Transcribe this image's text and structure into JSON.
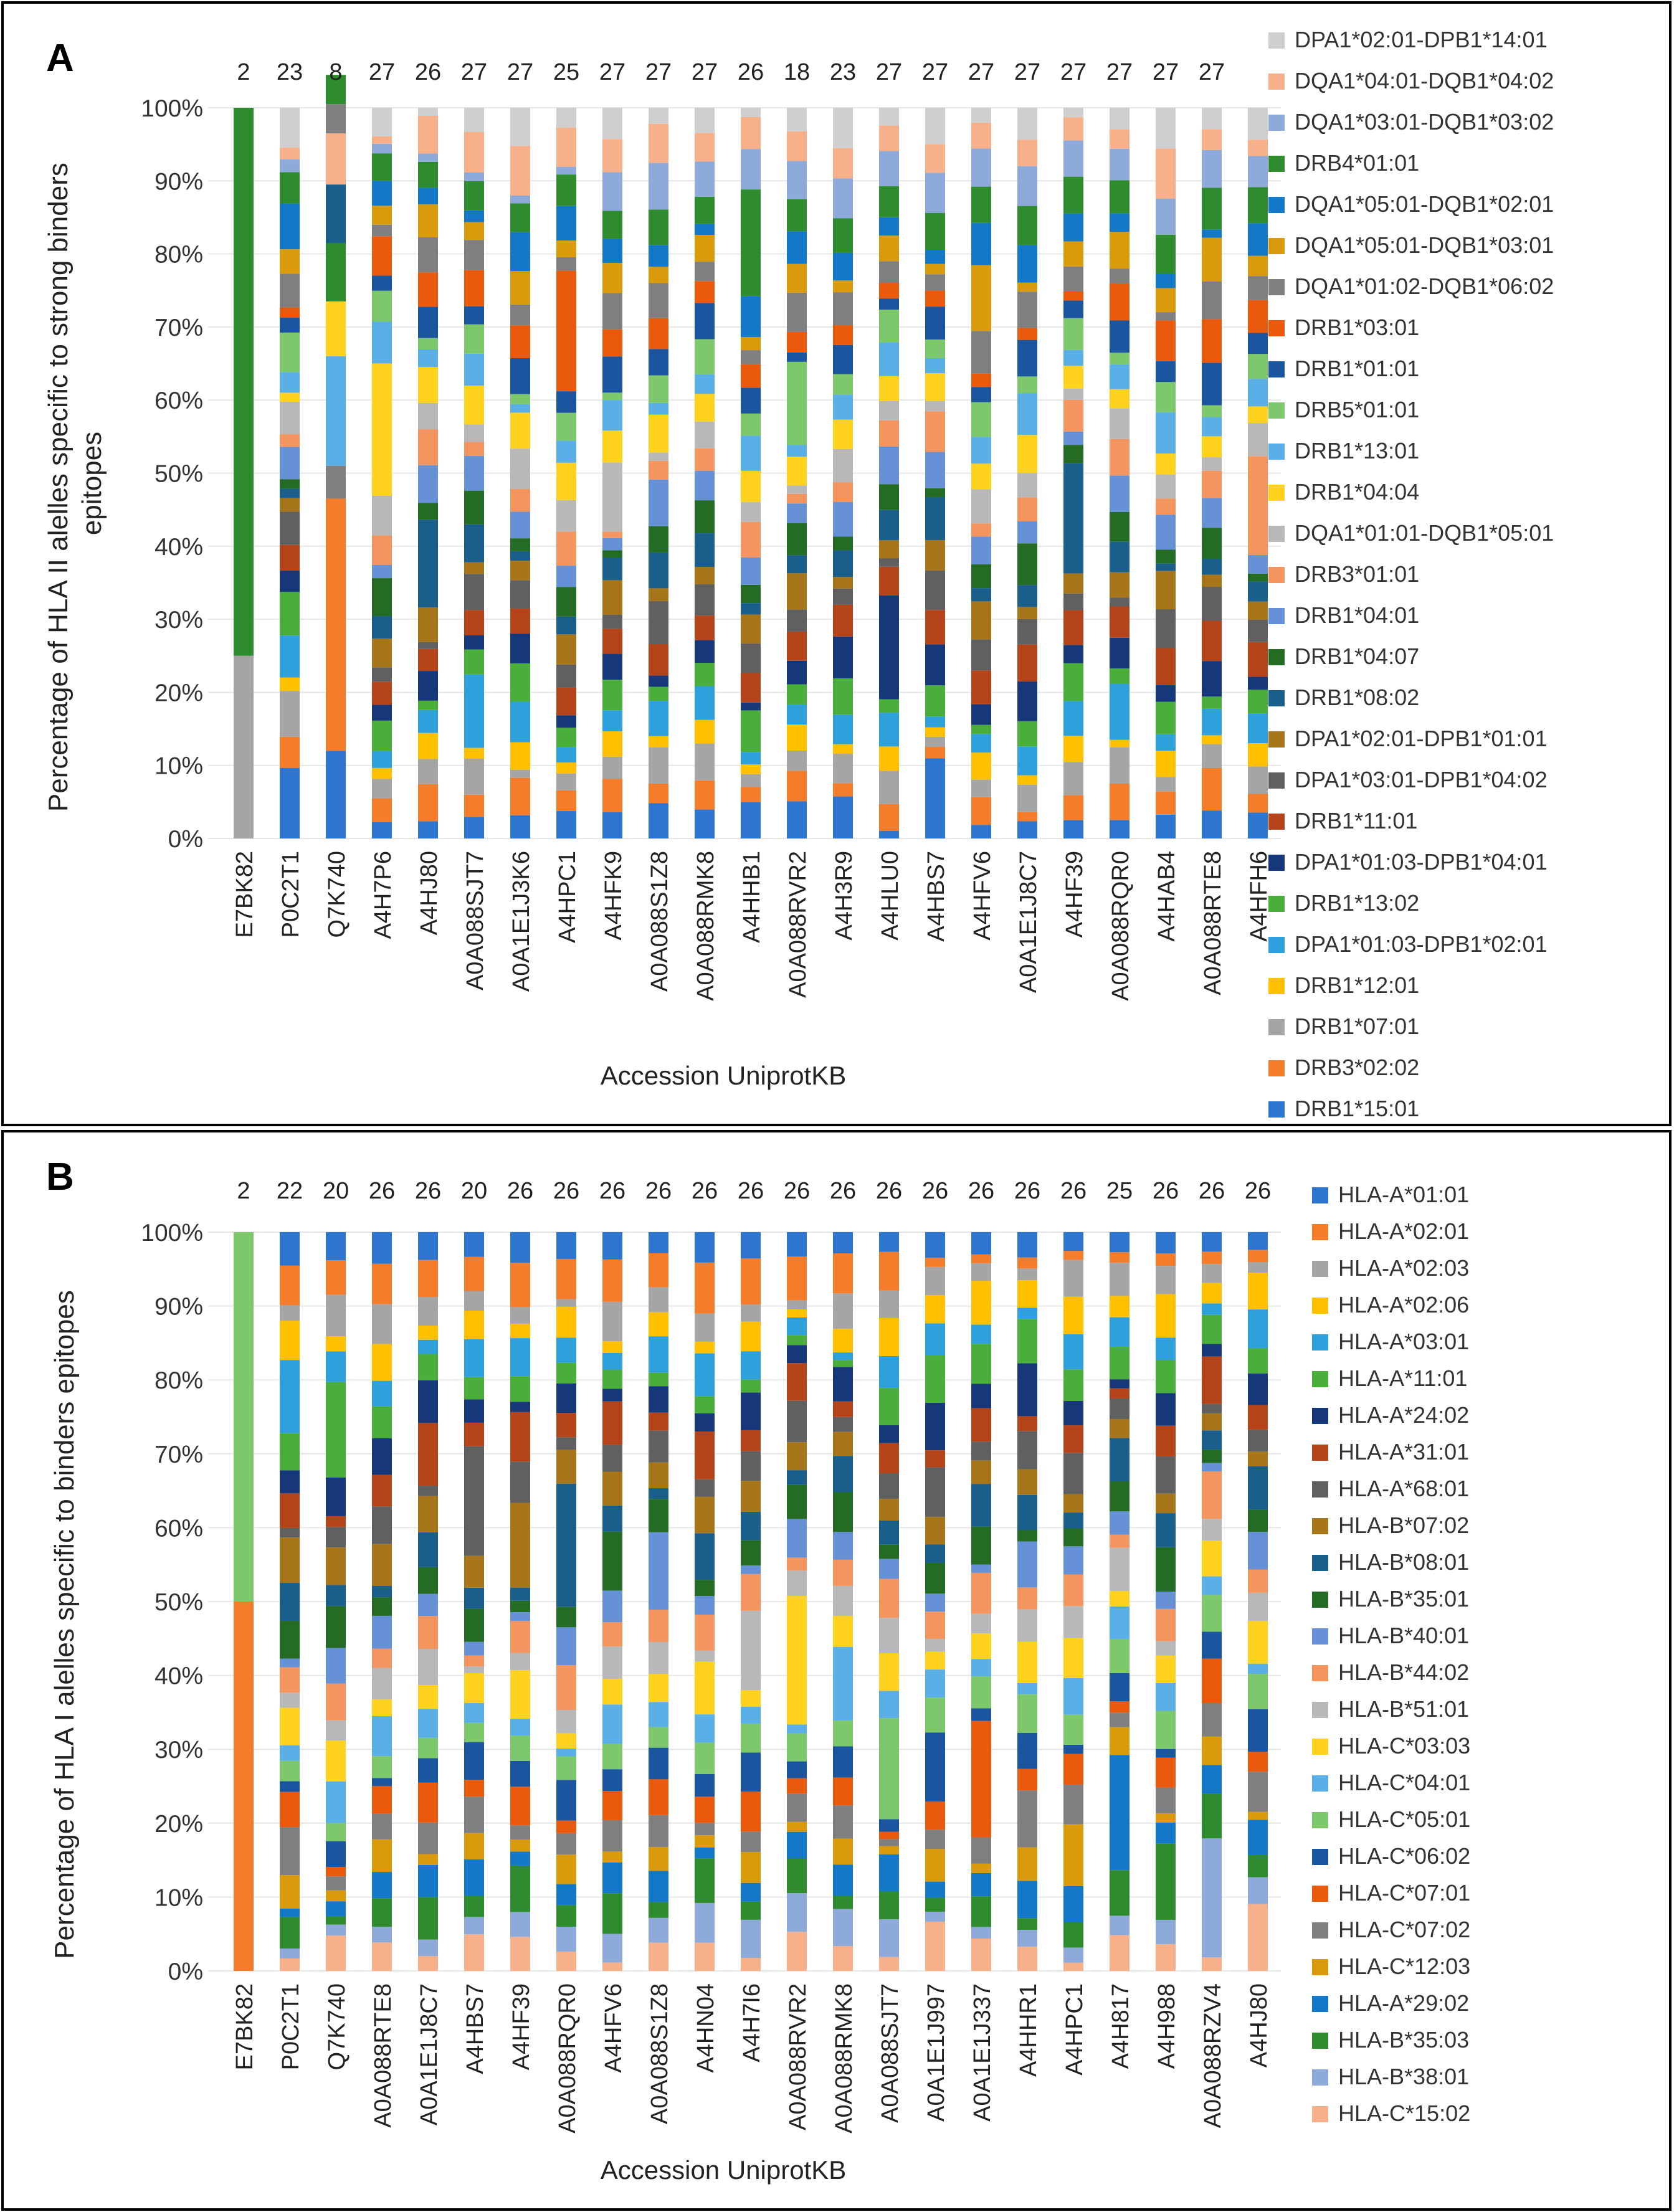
{
  "chart_data": [
    {
      "type": "bar",
      "stacked": true,
      "panel_label": "A",
      "ylabel": "Percentage of HLA II alelles specific to strong binders epitopes",
      "xlabel": "Accession UniprotKB",
      "ylim": [
        0,
        100
      ],
      "ytick_labels": [
        "0%",
        "10%",
        "20%",
        "30%",
        "40%",
        "50%",
        "60%",
        "70%",
        "80%",
        "90%",
        "100%"
      ],
      "categories": [
        "E7BK82",
        "P0C2T1",
        "Q7K740",
        "A4H7P6",
        "A4HJ80",
        "A0A088SJT7",
        "A0A1E1J3K6",
        "A4HPC1",
        "A4HFK9",
        "A0A088S1Z8",
        "A0A088RMK8",
        "A4HHB1",
        "A0A088RVR2",
        "A4H3R9",
        "A4HLU0",
        "A4HBS7",
        "A4HFV6",
        "A0A1E1J8C7",
        "A4HF39",
        "A0A088RQR0",
        "A4HAB4",
        "A0A088RTE8",
        "A4HFH6"
      ],
      "counts": [
        "2",
        "23",
        "8",
        "27",
        "26",
        "27",
        "27",
        "25",
        "27",
        "27",
        "27",
        "26",
        "18",
        "23",
        "27",
        "27",
        "27",
        "27",
        "27",
        "27",
        "27",
        "27",
        ""
      ],
      "legend": [
        {
          "name": "DPA1*02:01-DPB1*14:01",
          "color": "#cfcfcf"
        },
        {
          "name": "DQA1*04:01-DQB1*04:02",
          "color": "#f7b08a"
        },
        {
          "name": "DQA1*03:01-DQB1*03:02",
          "color": "#8eaadb"
        },
        {
          "name": "DRB4*01:01",
          "color": "#2e8b2e"
        },
        {
          "name": "DQA1*05:01-DQB1*02:01",
          "color": "#1478c8"
        },
        {
          "name": "DQA1*05:01-DQB1*03:01",
          "color": "#d99a0c"
        },
        {
          "name": "DQA1*01:02-DQB1*06:02",
          "color": "#7f7f7f"
        },
        {
          "name": "DRB1*03:01",
          "color": "#eb5a0c"
        },
        {
          "name": "DRB1*01:01",
          "color": "#1b55a0"
        },
        {
          "name": "DRB5*01:01",
          "color": "#7cc86a"
        },
        {
          "name": "DRB1*13:01",
          "color": "#5aafe6"
        },
        {
          "name": "DRB1*04:04",
          "color": "#ffd21e"
        },
        {
          "name": "DQA1*01:01-DQB1*05:01",
          "color": "#b8b8b8"
        },
        {
          "name": "DRB3*01:01",
          "color": "#f4945e"
        },
        {
          "name": "DRB1*04:01",
          "color": "#6691d6"
        },
        {
          "name": "DRB1*04:07",
          "color": "#246b24"
        },
        {
          "name": "DRB1*08:02",
          "color": "#1a5f8c"
        },
        {
          "name": "DPA1*02:01-DPB1*01:01",
          "color": "#a8761a"
        },
        {
          "name": "DPA1*03:01-DPB1*04:02",
          "color": "#606060"
        },
        {
          "name": "DRB1*11:01",
          "color": "#b5441a"
        },
        {
          "name": "DPA1*01:03-DPB1*04:01",
          "color": "#16387a"
        },
        {
          "name": "DRB1*13:02",
          "color": "#4aaf3a"
        },
        {
          "name": "DPA1*01:03-DPB1*02:01",
          "color": "#2ea0dc"
        },
        {
          "name": "DRB1*12:01",
          "color": "#ffc000"
        },
        {
          "name": "DRB1*07:01",
          "color": "#a5a5a5"
        },
        {
          "name": "DRB3*02:02",
          "color": "#f57c2a"
        },
        {
          "name": "DRB1*15:01",
          "color": "#2e75d0"
        }
      ],
      "special_bars": {
        "E7BK82": [
          [
            "DRB1*07:01",
            25
          ],
          [
            "DRB4*01:01",
            75
          ]
        ],
        "Q7K740": [
          [
            "DRB1*15:01",
            12
          ],
          [
            "DRB3*02:02",
            34.5
          ],
          [
            "DQA1*01:02-DQB1*06:02",
            4.5
          ],
          [
            "DRB1*13:01",
            15
          ],
          [
            "DRB1*04:04",
            7.5
          ],
          [
            "DRB4*01:01",
            8
          ],
          [
            "DRB1*08:02",
            8
          ],
          [
            "DQA1*04:01-DQB1*04:02",
            7
          ],
          [
            "DQA1*01:02-DQB1*06:02",
            4
          ],
          [
            "DRB4*01:01",
            4
          ]
        ]
      }
    },
    {
      "type": "bar",
      "stacked": true,
      "panel_label": "B",
      "ylabel": "Percentage of HLA I alelles specific to binders epitopes",
      "xlabel": "Accession UniprotKB",
      "ylim": [
        0,
        100
      ],
      "ytick_labels": [
        "0%",
        "10%",
        "20%",
        "30%",
        "40%",
        "50%",
        "60%",
        "70%",
        "80%",
        "90%",
        "100%"
      ],
      "categories": [
        "E7BK82",
        "P0C2T1",
        "Q7K740",
        "A0A088RTE8",
        "A0A1E1J8C7",
        "A4HBS7",
        "A4HF39",
        "A0A088RQR0",
        "A4HFV6",
        "A0A088S1Z8",
        "A4HN04",
        "A4H7I6",
        "A0A088RVR2",
        "A0A088RMK8",
        "A0A088SJT7",
        "A0A1E1J997",
        "A0A1E1J337",
        "A4HHR1",
        "A4HPC1",
        "A4H817",
        "A4H988",
        "A0A088RZV4",
        "A4HJ80"
      ],
      "counts": [
        "2",
        "22",
        "20",
        "26",
        "26",
        "20",
        "26",
        "26",
        "26",
        "26",
        "26",
        "26",
        "26",
        "26",
        "26",
        "26",
        "26",
        "26",
        "26",
        "25",
        "26",
        "26",
        "26"
      ],
      "legend": [
        {
          "name": "HLA-A*01:01",
          "color": "#2e75d0"
        },
        {
          "name": "HLA-A*02:01",
          "color": "#f57c2a"
        },
        {
          "name": "HLA-A*02:03",
          "color": "#a5a5a5"
        },
        {
          "name": "HLA-A*02:06",
          "color": "#ffc000"
        },
        {
          "name": "HLA-A*03:01",
          "color": "#2ea0dc"
        },
        {
          "name": "HLA-A*11:01",
          "color": "#4aaf3a"
        },
        {
          "name": "HLA-A*24:02",
          "color": "#16387a"
        },
        {
          "name": "HLA-A*31:01",
          "color": "#b5441a"
        },
        {
          "name": "HLA-A*68:01",
          "color": "#606060"
        },
        {
          "name": "HLA-B*07:02",
          "color": "#a8761a"
        },
        {
          "name": "HLA-B*08:01",
          "color": "#1a5f8c"
        },
        {
          "name": "HLA-B*35:01",
          "color": "#246b24"
        },
        {
          "name": "HLA-B*40:01",
          "color": "#6691d6"
        },
        {
          "name": "HLA-B*44:02",
          "color": "#f4945e"
        },
        {
          "name": "HLA-B*51:01",
          "color": "#b8b8b8"
        },
        {
          "name": "HLA-C*03:03",
          "color": "#ffd21e"
        },
        {
          "name": "HLA-C*04:01",
          "color": "#5aafe6"
        },
        {
          "name": "HLA-C*05:01",
          "color": "#7cc86a"
        },
        {
          "name": "HLA-C*06:02",
          "color": "#1b55a0"
        },
        {
          "name": "HLA-C*07:01",
          "color": "#eb5a0c"
        },
        {
          "name": "HLA-C*07:02",
          "color": "#7f7f7f"
        },
        {
          "name": "HLA-C*12:03",
          "color": "#d99a0c"
        },
        {
          "name": "HLA-A*29:02",
          "color": "#1478c8"
        },
        {
          "name": "HLA-B*35:03",
          "color": "#2e8b2e"
        },
        {
          "name": "HLA-B*38:01",
          "color": "#8eaadb"
        },
        {
          "name": "HLA-C*15:02",
          "color": "#f7b08a"
        }
      ],
      "special_bars": {
        "E7BK82": [
          [
            "HLA-A*02:01",
            50
          ],
          [
            "HLA-C*05:01",
            50
          ]
        ]
      }
    }
  ]
}
